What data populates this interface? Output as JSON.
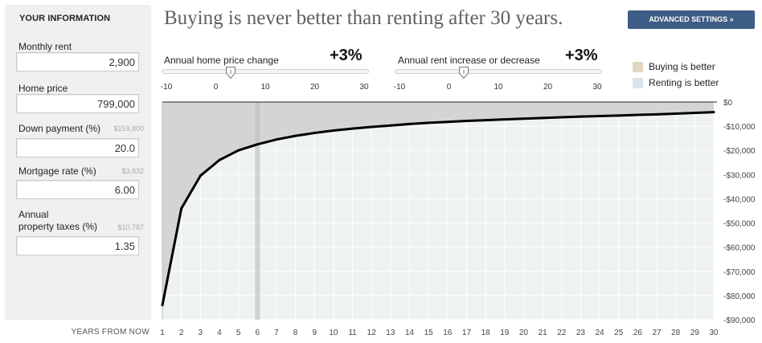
{
  "sidebar": {
    "heading": "YOUR INFORMATION",
    "fields": [
      {
        "label": "Monthly rent",
        "sub": "",
        "value": "2,900"
      },
      {
        "label": "Home price",
        "sub": "",
        "value": "799,000"
      },
      {
        "label": "Down payment (%)",
        "sub": "$159,800",
        "value": "20.0"
      },
      {
        "label": "Mortgage rate (%)",
        "sub": "$3,832",
        "value": "6.00"
      },
      {
        "label_line1": "Annual",
        "label_line2": "property taxes (%)",
        "sub": "$10,787",
        "value": "1.35"
      }
    ]
  },
  "header": {
    "headline": "Buying is never better than renting after 30 years.",
    "advanced_label": "ADVANCED SETTINGS »"
  },
  "sliders": [
    {
      "label": "Annual home price change",
      "value_text": "+3%",
      "value": 3,
      "min": -10,
      "max": 30,
      "ticks": [
        "-10",
        "0",
        "10",
        "20",
        "30"
      ]
    },
    {
      "label": "Annual rent increase or decrease",
      "value_text": "+3%",
      "value": 3,
      "min": -10,
      "max": 30,
      "ticks": [
        "-10",
        "0",
        "10",
        "20",
        "30"
      ]
    }
  ],
  "legend": [
    {
      "label": "Buying is better",
      "color": "#e2d6c0"
    },
    {
      "label": "Renting is better",
      "color": "#dbe3ea"
    }
  ],
  "chart_data": {
    "type": "area",
    "xlabel": "YEARS FROM NOW",
    "x": [
      1,
      2,
      3,
      4,
      5,
      6,
      7,
      8,
      9,
      10,
      11,
      12,
      13,
      14,
      15,
      16,
      17,
      18,
      19,
      20,
      21,
      22,
      23,
      24,
      25,
      26,
      27,
      28,
      29,
      30
    ],
    "y": [
      -84000,
      -44000,
      -30500,
      -24000,
      -20000,
      -17500,
      -15500,
      -14000,
      -12800,
      -11800,
      -11000,
      -10300,
      -9700,
      -9100,
      -8600,
      -8200,
      -7800,
      -7500,
      -7200,
      -6900,
      -6600,
      -6300,
      -6000,
      -5800,
      -5600,
      -5300,
      -5100,
      -4800,
      -4500,
      -4200
    ],
    "ylim": [
      -90000,
      0
    ],
    "yticks": [
      0,
      -10000,
      -20000,
      -30000,
      -40000,
      -50000,
      -60000,
      -70000,
      -80000,
      -90000
    ],
    "ytick_labels": [
      "$0",
      "-$10,000",
      "-$20,000",
      "-$30,000",
      "-$40,000",
      "-$50,000",
      "-$60,000",
      "-$70,000",
      "-$80,000",
      "-$90,000"
    ],
    "xtick_labels": [
      "1",
      "2",
      "3",
      "4",
      "5",
      "6",
      "7",
      "8",
      "9",
      "10",
      "11",
      "12",
      "13",
      "14",
      "15",
      "16",
      "17",
      "18",
      "19",
      "20",
      "21",
      "22",
      "23",
      "24",
      "25",
      "26",
      "27",
      "28",
      "29",
      "30"
    ],
    "highlight_year": 6,
    "colors": {
      "background": "#eff2f2",
      "renting_area": "#d4d4d4",
      "line": "#000000",
      "highlight": "#c2c2c2"
    },
    "grid": true
  }
}
